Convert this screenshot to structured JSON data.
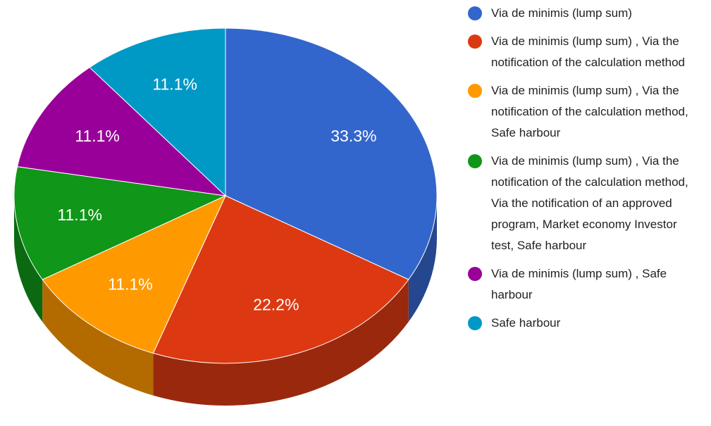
{
  "chart_data": {
    "type": "pie",
    "categories": [
      "Via de minimis (lump sum)",
      "Via de minimis (lump sum) , Via the notification of the calculation method",
      "Via de minimis (lump sum) , Via the notification of the calculation method, Safe harbour",
      "Via de minimis (lump sum) , Via the notification of the calculation method, Via the notification of an approved program, Market economy Investor test, Safe harbour",
      "Via de minimis (lump sum) , Safe harbour",
      "Safe harbour"
    ],
    "values": [
      33.3,
      22.2,
      11.1,
      11.1,
      11.1,
      11.1
    ],
    "value_labels": [
      "33.3%",
      "22.2%",
      "11.1%",
      "11.1%",
      "11.1%",
      "11.1%"
    ],
    "colors": [
      "#3366cc",
      "#dc3912",
      "#ff9900",
      "#109618",
      "#990099",
      "#0099c6"
    ],
    "legend": "right"
  }
}
